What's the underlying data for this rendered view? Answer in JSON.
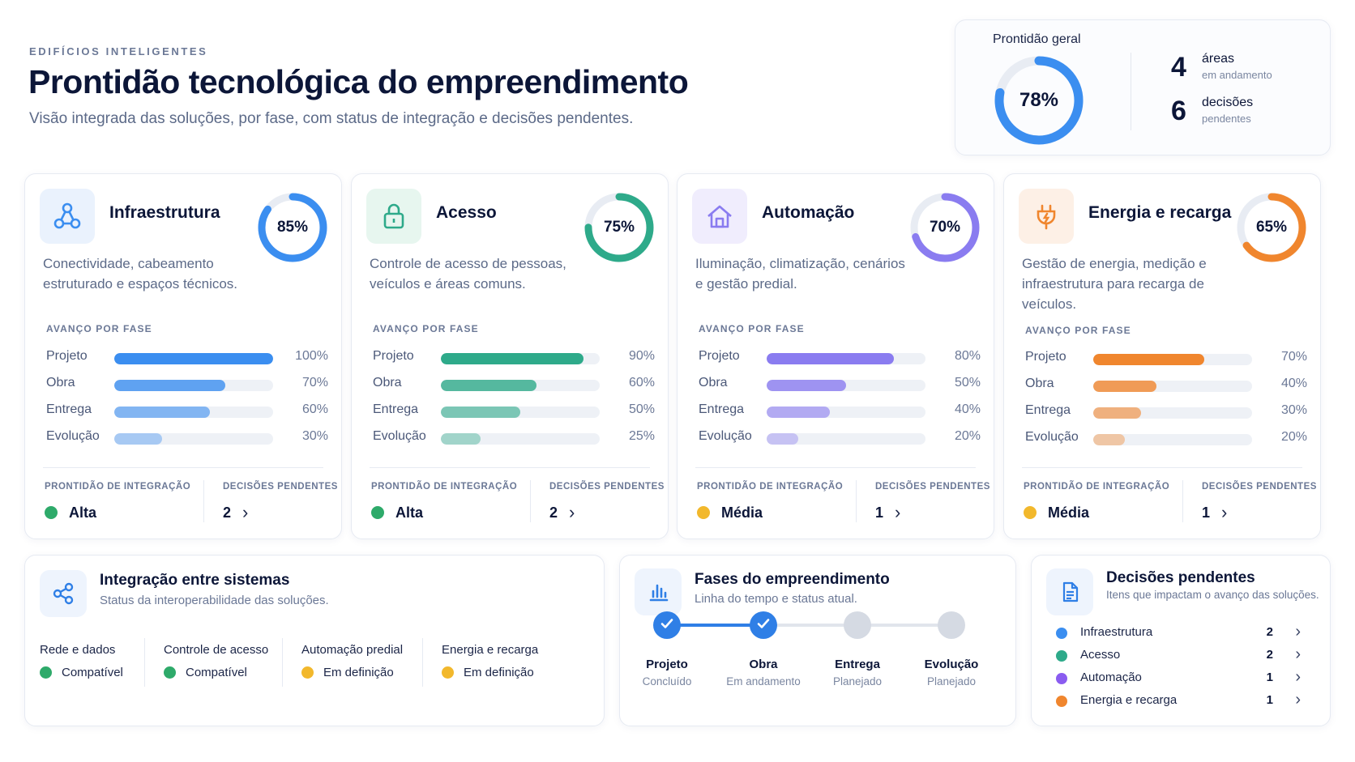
{
  "header": {
    "eyebrow": "EDIFÍCIOS INTELIGENTES",
    "title": "Prontidão tecnológica do empreendimento",
    "subtitle": "Visão integrada das soluções, por fase, com status de integração e decisões pendentes."
  },
  "overall": {
    "label": "Prontidão geral",
    "percent": 78,
    "percent_label": "78%",
    "color": "#3b8ef0",
    "stats": [
      {
        "value": "4",
        "label": "áreas",
        "sub": "em andamento"
      },
      {
        "value": "6",
        "label": "decisões",
        "sub": "pendentes"
      }
    ]
  },
  "phase_header": "AVANÇO POR FASE",
  "integration_header": "PRONTIDÃO DE INTEGRAÇÃO",
  "decisions_header": "DECISÕES PENDENTES",
  "categories": [
    {
      "title": "Infraestrutura",
      "icon": "network-nodes-icon",
      "icon_bg": "#eaf2fd",
      "color": "#3b8ef0",
      "percent": 85,
      "percent_label": "85%",
      "description": "Conectividade, cabeamento estruturado e espaços técnicos.",
      "phases": [
        {
          "name": "Projeto",
          "value": 100,
          "label": "100%"
        },
        {
          "name": "Obra",
          "value": 70,
          "label": "70%"
        },
        {
          "name": "Entrega",
          "value": 60,
          "label": "60%"
        },
        {
          "name": "Evolução",
          "value": 30,
          "label": "30%"
        }
      ],
      "integration": {
        "label": "Alta",
        "color": "#2eaa6a"
      },
      "decisions": "2"
    },
    {
      "title": "Acesso",
      "icon": "lock-icon",
      "icon_bg": "#e7f6ef",
      "color": "#2eaa8a",
      "percent": 75,
      "percent_label": "75%",
      "description": "Controle de acesso de pessoas, veículos e áreas comuns.",
      "phases": [
        {
          "name": "Projeto",
          "value": 90,
          "label": "90%"
        },
        {
          "name": "Obra",
          "value": 60,
          "label": "60%"
        },
        {
          "name": "Entrega",
          "value": 50,
          "label": "50%"
        },
        {
          "name": "Evolução",
          "value": 25,
          "label": "25%"
        }
      ],
      "integration": {
        "label": "Alta",
        "color": "#2eaa6a"
      },
      "decisions": "2"
    },
    {
      "title": "Automação",
      "icon": "home-icon",
      "icon_bg": "#f0edfd",
      "color": "#8a7cf0",
      "percent": 70,
      "percent_label": "70%",
      "description": "Iluminação, climatização, cenários e gestão predial.",
      "phases": [
        {
          "name": "Projeto",
          "value": 80,
          "label": "80%"
        },
        {
          "name": "Obra",
          "value": 50,
          "label": "50%"
        },
        {
          "name": "Entrega",
          "value": 40,
          "label": "40%"
        },
        {
          "name": "Evolução",
          "value": 20,
          "label": "20%"
        }
      ],
      "integration": {
        "label": "Média",
        "color": "#f2b82c"
      },
      "decisions": "1"
    },
    {
      "title": "Energia e recarga",
      "icon": "plug-icon",
      "icon_bg": "#fdf0e6",
      "color": "#f0862e",
      "percent": 65,
      "percent_label": "65%",
      "description": "Gestão de energia, medição e infraestrutura para recarga de veículos.",
      "phases": [
        {
          "name": "Projeto",
          "value": 70,
          "label": "70%"
        },
        {
          "name": "Obra",
          "value": 40,
          "label": "40%"
        },
        {
          "name": "Entrega",
          "value": 30,
          "label": "30%"
        },
        {
          "name": "Evolução",
          "value": 20,
          "label": "20%"
        }
      ],
      "integration": {
        "label": "Média",
        "color": "#f2b82c"
      },
      "decisions": "1"
    }
  ],
  "integration_panel": {
    "title": "Integração entre sistemas",
    "subtitle": "Status da interoperabilidade das soluções.",
    "icon": "share-nodes-icon",
    "systems": [
      {
        "name": "Rede e dados",
        "status": "Compatível",
        "color": "#2eaa6a"
      },
      {
        "name": "Controle de acesso",
        "status": "Compatível",
        "color": "#2eaa6a"
      },
      {
        "name": "Automação predial",
        "status": "Em definição",
        "color": "#f2b82c"
      },
      {
        "name": "Energia e recarga",
        "status": "Em definição",
        "color": "#f2b82c"
      }
    ]
  },
  "phases_panel": {
    "title": "Fases do empreendimento",
    "subtitle": "Linha do tempo e status atual.",
    "icon": "bar-chart-icon",
    "steps": [
      {
        "name": "Projeto",
        "status": "Concluído",
        "done": true
      },
      {
        "name": "Obra",
        "status": "Em andamento",
        "done": true
      },
      {
        "name": "Entrega",
        "status": "Planejado",
        "done": false
      },
      {
        "name": "Evolução",
        "status": "Planejado",
        "done": false
      }
    ],
    "active_color": "#2f7fe6",
    "inactive_color": "#d5dae3"
  },
  "decisions_panel": {
    "title": "Decisões pendentes",
    "subtitle": "Itens que impactam o avanço das soluções.",
    "icon": "document-icon",
    "items": [
      {
        "name": "Infraestrutura",
        "count": "2",
        "color": "#3b8ef0"
      },
      {
        "name": "Acesso",
        "count": "2",
        "color": "#2eaa8a"
      },
      {
        "name": "Automação",
        "count": "1",
        "color": "#8a5cf0"
      },
      {
        "name": "Energia e recarga",
        "count": "1",
        "color": "#f0862e"
      }
    ]
  }
}
